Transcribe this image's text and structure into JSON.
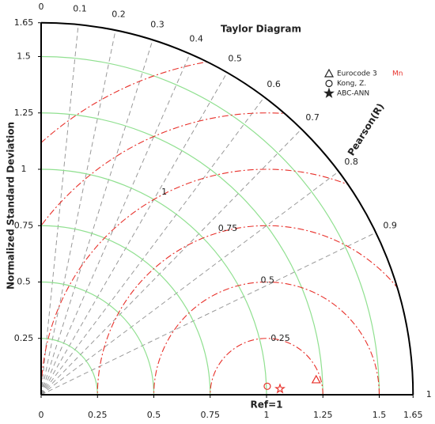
{
  "chart_data": {
    "type": "taylor",
    "title": "Taylor Diagram",
    "y_label": "Normalized Standard Deviation",
    "corr_label": "Pearson(R)",
    "ref_label": "Ref=1",
    "ref_std": 1,
    "std_max": 1.65,
    "xticks": [
      0,
      0.25,
      0.5,
      0.75,
      1,
      1.25,
      1.5,
      1.65
    ],
    "yticks": [
      0.25,
      0.5,
      0.75,
      1,
      1.25,
      1.5,
      1.65
    ],
    "std_arcs": [
      0.25,
      0.5,
      0.75,
      1,
      1.25,
      1.5
    ],
    "std_arc_color": "#90e090",
    "corr_ticks": [
      0,
      0.1,
      0.2,
      0.3,
      0.4,
      0.5,
      0.6,
      0.7,
      0.8,
      0.9,
      1
    ],
    "corr_line_color": "#999999",
    "rmsd_ticks": [
      0.25,
      0.5,
      0.75,
      1
    ],
    "rmsd_arcs_unlabeled": [
      1.25,
      1.5
    ],
    "rmsd_color": "#e8302a",
    "legend_note": "Mn",
    "series": [
      {
        "name": "Eurocode 3",
        "marker": "triangle",
        "color": "#e8302a",
        "std": 1.222,
        "corr": 0.9985
      },
      {
        "name": "Kong, Z.",
        "marker": "circle",
        "color": "#e8302a",
        "std": 1.004,
        "corr": 0.9993
      },
      {
        "name": "ABC-ANN",
        "marker": "star",
        "color": "#e8302a",
        "std": 1.06,
        "corr": 0.9997
      }
    ]
  }
}
